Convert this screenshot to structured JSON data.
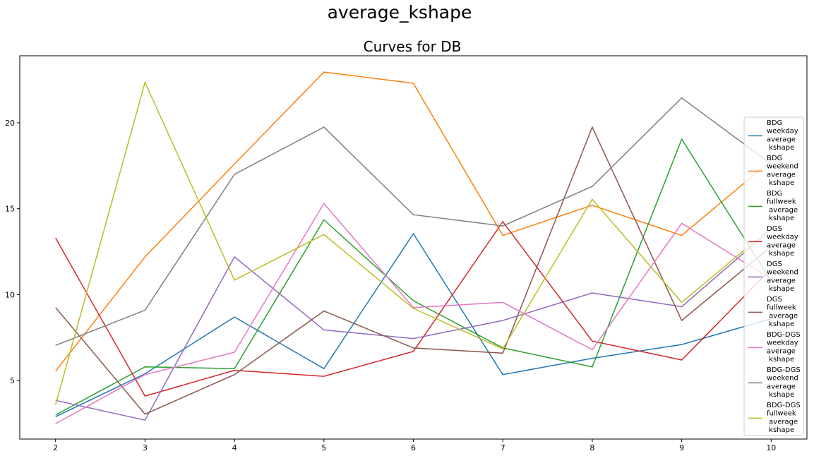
{
  "suptitle": "average_kshape",
  "chart_data": {
    "type": "line",
    "title": "Curves for DB",
    "xlabel": "",
    "ylabel": "",
    "x": [
      2,
      3,
      4,
      5,
      6,
      7,
      8,
      9,
      10
    ],
    "xticks": [
      "2",
      "3",
      "4",
      "5",
      "6",
      "7",
      "8",
      "9",
      "10"
    ],
    "yticks": [
      "5",
      "10",
      "15",
      "20"
    ],
    "xlim": [
      1.6,
      10.4
    ],
    "ylim": [
      1.6,
      23.9
    ],
    "grid": false,
    "legend_position": "right",
    "series": [
      {
        "name": "BDG\nweekday\naverage\n kshape",
        "color": "#1f77b4",
        "values": [
          2.9,
          5.4,
          8.7,
          5.7,
          13.55,
          5.35,
          6.3,
          7.1,
          8.6
        ]
      },
      {
        "name": "BDG\nweekend\naverage\n kshape",
        "color": "#ff7f0e",
        "values": [
          5.55,
          12.2,
          17.6,
          22.95,
          22.3,
          13.45,
          15.2,
          13.45,
          17.8
        ]
      },
      {
        "name": "BDG\nfullweek\n average\n kshape",
        "color": "#2ca02c",
        "values": [
          3.0,
          5.8,
          5.7,
          14.35,
          9.65,
          6.9,
          5.8,
          19.05,
          10.8
        ]
      },
      {
        "name": "DGS\nweekday\naverage\n kshape",
        "color": "#d62728",
        "values": [
          13.3,
          4.1,
          5.6,
          5.25,
          6.7,
          14.25,
          7.3,
          6.2,
          11.5
        ]
      },
      {
        "name": "DGS\nweekend\naverage\n kshape",
        "color": "#9467bd",
        "values": [
          3.85,
          2.7,
          12.2,
          7.95,
          7.45,
          8.5,
          10.1,
          9.3,
          13.8
        ]
      },
      {
        "name": "DGS\nfullweek\n average\n kshape",
        "color": "#8c564b",
        "values": [
          9.25,
          3.05,
          5.35,
          9.05,
          6.9,
          6.6,
          19.75,
          8.5,
          12.8
        ]
      },
      {
        "name": "BDG-DGS\nweekday\naverage\n kshape",
        "color": "#e377c2",
        "values": [
          2.5,
          5.35,
          6.65,
          15.3,
          9.25,
          9.55,
          6.8,
          14.15,
          10.9
        ]
      },
      {
        "name": "BDG-DGS\nweekend\naverage\n kshape",
        "color": "#7f7f7f",
        "values": [
          7.05,
          9.1,
          17.0,
          19.75,
          14.65,
          14.0,
          16.3,
          21.45,
          17.6
        ]
      },
      {
        "name": "BDG-DGS\nfullweek\n average\n kshape",
        "color": "#bcbd22",
        "values": [
          3.6,
          22.35,
          10.85,
          13.5,
          9.2,
          6.85,
          15.55,
          9.55,
          13.9
        ]
      }
    ]
  }
}
